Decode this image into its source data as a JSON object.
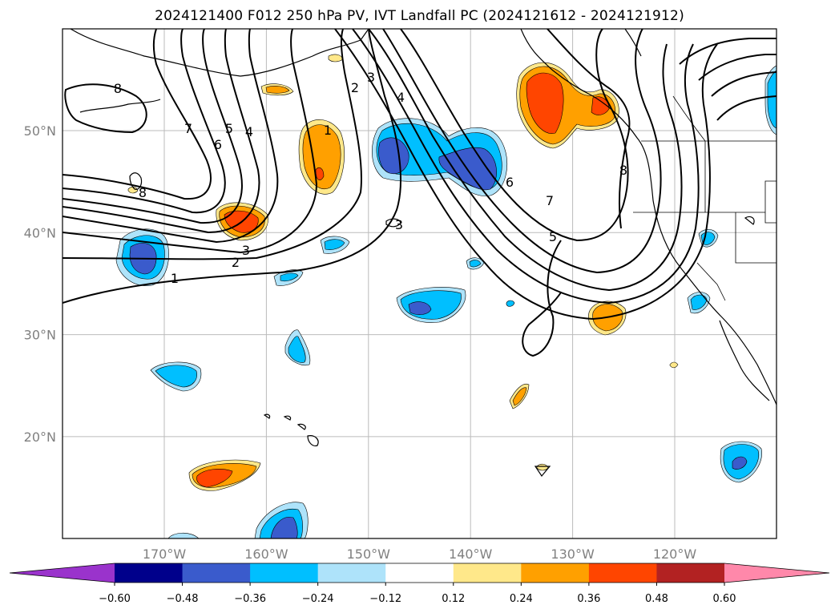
{
  "title": "2024121400 F012 250 hPa PV, IVT Landfall PC (2024121612 - 2024121912)",
  "lat_ticks": [
    {
      "label": "50°N",
      "lat": 50
    },
    {
      "label": "40°N",
      "lat": 40
    },
    {
      "label": "30°N",
      "lat": 30
    },
    {
      "label": "20°N",
      "lat": 20
    }
  ],
  "lon_ticks": [
    {
      "label": "170°W",
      "lon": -170
    },
    {
      "label": "160°W",
      "lon": -160
    },
    {
      "label": "150°W",
      "lon": -150
    },
    {
      "label": "140°W",
      "lon": -140
    },
    {
      "label": "130°W",
      "lon": -130
    },
    {
      "label": "120°W",
      "lon": -120
    }
  ],
  "contour_labels": [
    "8",
    "7",
    "6",
    "5",
    "4",
    "3",
    "2",
    "1",
    "1",
    "2",
    "3",
    "4",
    "6",
    "7",
    "5",
    "8",
    "3",
    "8"
  ],
  "colorbar": {
    "colors": [
      "#9a33cc",
      "#00008b",
      "#3a5bcc",
      "#00bfff",
      "#aee3fa",
      "#ffffff",
      "#ffe88a",
      "#ffa000",
      "#ff4500",
      "#b22222",
      "#ff88aa"
    ],
    "tick_labels": [
      "−0.60",
      "−0.48",
      "−0.36",
      "−0.24",
      "−0.12",
      "0.12",
      "0.24",
      "0.36",
      "0.48",
      "0.60"
    ]
  },
  "colors": {
    "negative_light": "#aee3fa",
    "negative_mid": "#00bfff",
    "negative_strong": "#3a5bcc",
    "positive_light": "#ffe88a",
    "positive_mid": "#ffa000",
    "positive_strong": "#ff4500"
  }
}
